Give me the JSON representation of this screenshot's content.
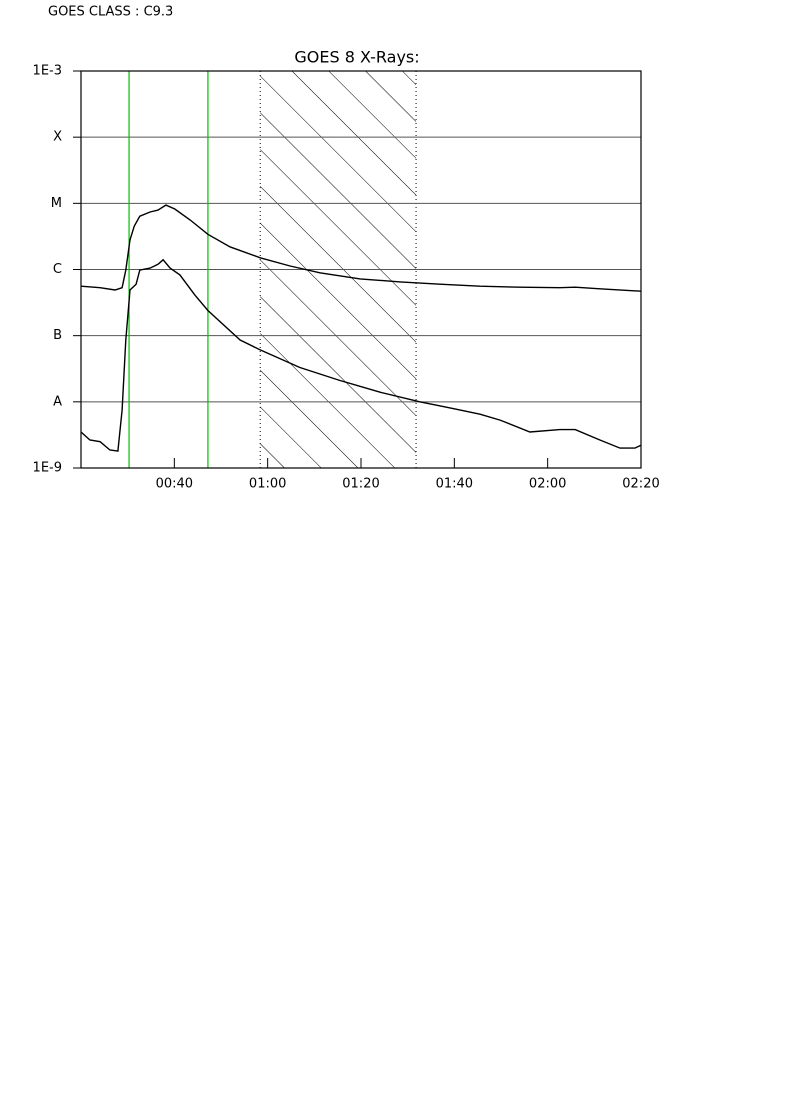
{
  "chart_data": {
    "type": "line",
    "annotation": "GOES CLASS : C9.3",
    "title": "GOES 8 X-Rays:",
    "log_scale_y": true,
    "grid": true,
    "xlim": [
      20,
      140
    ],
    "xticks": [
      {
        "value": 40,
        "label": "00:40"
      },
      {
        "value": 60,
        "label": "01:00"
      },
      {
        "value": 80,
        "label": "01:20"
      },
      {
        "value": 100,
        "label": "01:40"
      },
      {
        "value": 120,
        "label": "02:00"
      },
      {
        "value": 140,
        "label": "02:20"
      }
    ],
    "ylim": [
      1e-09,
      0.001
    ],
    "yticks": [
      {
        "value": 1e-09,
        "label": "1E-9"
      },
      {
        "value": 1e-08,
        "label": "A"
      },
      {
        "value": 1e-07,
        "label": "B"
      },
      {
        "value": 1e-06,
        "label": "C"
      },
      {
        "value": 1e-05,
        "label": "M"
      },
      {
        "value": 0.0001,
        "label": "X"
      },
      {
        "value": 0.001,
        "label": "1E-3"
      }
    ],
    "markers": [
      30.3,
      47.2
    ],
    "marker_color": "#00c000",
    "shaded_region": [
      58.4,
      91.8
    ],
    "series": [
      {
        "color": "#000000",
        "x": [
          20,
          24.1,
          27.3,
          28.8,
          29.6,
          30.5,
          31.4,
          32.6,
          34.8,
          36.5,
          38.2,
          40.1,
          43.4,
          47.2,
          51.9,
          58.4,
          64.8,
          71.2,
          79.8,
          88.4,
          96.9,
          105.5,
          114.1,
          122.6,
          125.9,
          131.2,
          140
        ],
        "values": [
          5.6e-07,
          5.3e-07,
          4.9e-07,
          5.3e-07,
          9.8e-07,
          2.8e-06,
          4.5e-06,
          6.4e-06,
          7.4e-06,
          7.9e-06,
          9.4e-06,
          8.2e-06,
          5.6e-06,
          3.4e-06,
          2.2e-06,
          1.5e-06,
          1.13e-06,
          8.9e-07,
          7.2e-07,
          6.5e-07,
          6e-07,
          5.6e-07,
          5.4e-07,
          5.3e-07,
          5.4e-07,
          5.1e-07,
          4.7e-07
        ]
      },
      {
        "color": "#000000",
        "x": [
          20,
          21.9,
          24.1,
          26.2,
          27.9,
          28.8,
          29.6,
          30.5,
          31.8,
          32.6,
          34.8,
          36.5,
          37.6,
          39.1,
          41.2,
          44.4,
          47.2,
          54.1,
          58.4,
          66.9,
          75.5,
          84.1,
          92.6,
          99.1,
          105.5,
          109.8,
          116.2,
          122.6,
          125.9,
          131.2,
          135.5,
          138.7,
          140
        ],
        "values": [
          3.5e-09,
          2.65e-09,
          2.5e-09,
          1.87e-09,
          1.8e-09,
          7.5e-09,
          8.6e-08,
          4.9e-07,
          6e-07,
          9.8e-07,
          1.05e-06,
          1.2e-06,
          1.4e-06,
          1.05e-06,
          8.3e-07,
          4.1e-07,
          2.4e-07,
          8.6e-08,
          6.1e-08,
          3.3e-08,
          2.1e-08,
          1.4e-08,
          1e-08,
          8.1e-09,
          6.5e-09,
          5.3e-09,
          3.5e-09,
          3.8e-09,
          3.8e-09,
          2.65e-09,
          2e-09,
          2e-09,
          2.2e-09
        ]
      }
    ]
  }
}
